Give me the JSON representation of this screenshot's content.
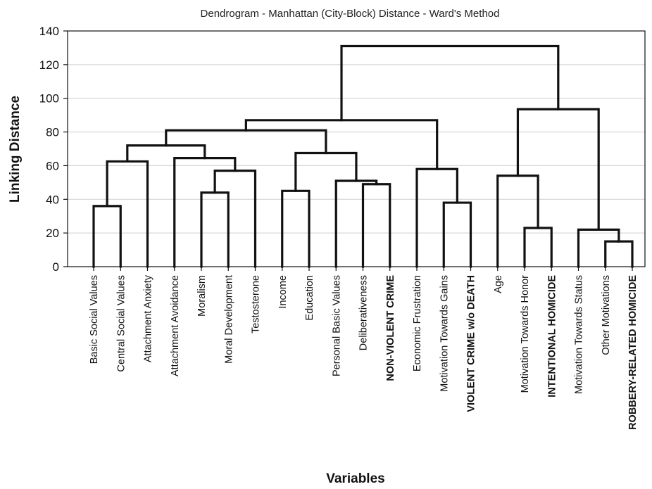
{
  "chart_data": {
    "type": "dendrogram",
    "title": "Dendrogram - Manhattan (City-Block) Distance - Ward's Method",
    "xlabel": "Variables",
    "ylabel": "Linking Distance",
    "ylim": [
      0,
      140
    ],
    "yticks": [
      0,
      20,
      40,
      60,
      80,
      100,
      120,
      140
    ],
    "grid": true,
    "leaves": [
      {
        "label": "Basic Social Values",
        "bold": false
      },
      {
        "label": "Central Social Values",
        "bold": false
      },
      {
        "label": "Attachment Anxiety",
        "bold": false
      },
      {
        "label": "Attachment Avoidance",
        "bold": false
      },
      {
        "label": "Moralism",
        "bold": false
      },
      {
        "label": "Moral Development",
        "bold": false
      },
      {
        "label": "Testosterone",
        "bold": false
      },
      {
        "label": "Income",
        "bold": false
      },
      {
        "label": "Education",
        "bold": false
      },
      {
        "label": "Personal Basic Values",
        "bold": false
      },
      {
        "label": "Deliberativeness",
        "bold": false
      },
      {
        "label": "NON-VIOLENT CRIME",
        "bold": true
      },
      {
        "label": "Economic Frustration",
        "bold": false
      },
      {
        "label": "Motivation Towards Gains",
        "bold": false
      },
      {
        "label": "VIOLENT CRIME w/o DEATH",
        "bold": true
      },
      {
        "label": "Age",
        "bold": false
      },
      {
        "label": "Motivation Towards Honor",
        "bold": false
      },
      {
        "label": "INTENTIONAL HOMICIDE",
        "bold": true
      },
      {
        "label": "Motivation Towards Status",
        "bold": false
      },
      {
        "label": "Other Motivations",
        "bold": false
      },
      {
        "label": "ROBBERY-RELATED HOMICIDE",
        "bold": true
      }
    ],
    "merges": [
      {
        "left": 0,
        "right": 1,
        "height": 36
      },
      {
        "left": 4,
        "right": 5,
        "height": 44
      },
      {
        "left": 7,
        "right": 8,
        "height": 45
      },
      {
        "left": 10,
        "right": 11,
        "height": 49
      },
      {
        "left": 9,
        "right": 24,
        "height": 51
      },
      {
        "left": 22,
        "right": 6,
        "height": 57
      },
      {
        "left": 13,
        "right": 14,
        "height": 38
      },
      {
        "left": 12,
        "right": 27,
        "height": 58
      },
      {
        "left": 16,
        "right": 17,
        "height": 23
      },
      {
        "left": 15,
        "right": 29,
        "height": 54
      },
      {
        "left": 19,
        "right": 20,
        "height": 15
      },
      {
        "left": 18,
        "right": 31,
        "height": 22
      },
      {
        "left": 21,
        "right": 2,
        "height": 62.5
      },
      {
        "left": 3,
        "right": 26,
        "height": 64.5
      },
      {
        "left": 33,
        "right": 34,
        "height": 72
      },
      {
        "left": 23,
        "right": 25,
        "height": 67.5
      },
      {
        "left": 35,
        "right": 36,
        "height": 81
      },
      {
        "left": 37,
        "right": 28,
        "height": 87
      },
      {
        "left": 30,
        "right": 32,
        "height": 93.5
      },
      {
        "left": 38,
        "right": 39,
        "height": 131
      }
    ]
  }
}
